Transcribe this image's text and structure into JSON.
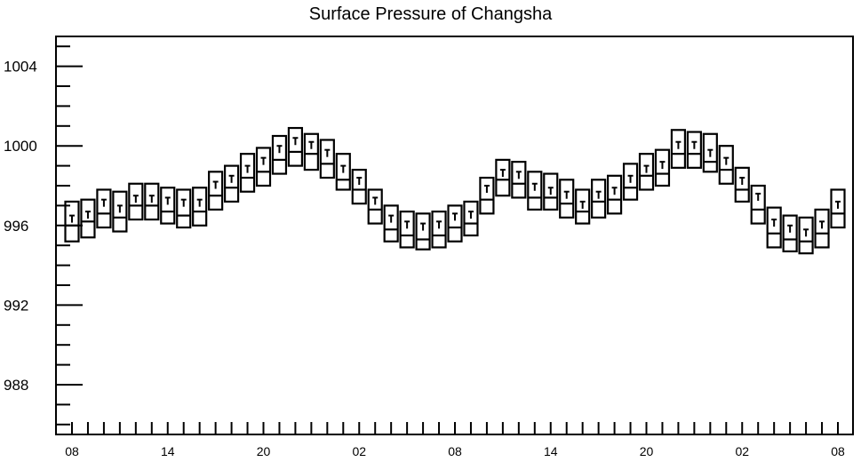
{
  "chart_data": {
    "type": "boxplot",
    "title": "Surface Pressure of Changsha",
    "xlabel": "",
    "ylabel": "",
    "ylim": [
      985.5,
      1005.5
    ],
    "yticks": [
      988,
      992,
      996,
      1000,
      1004
    ],
    "xtick_labels": [
      "08",
      "14",
      "20",
      "02",
      "08",
      "14",
      "20",
      "02",
      "08"
    ],
    "x_step_hours": 3,
    "series": [
      {
        "box": [
          [
            995.2,
            997.2
          ],
          [
            995.4,
            997.3
          ],
          [
            995.9,
            997.8
          ],
          [
            995.7,
            997.7
          ],
          [
            996.3,
            998.1
          ],
          [
            996.3,
            998.1
          ],
          [
            996.1,
            997.9
          ],
          [
            995.9,
            997.8
          ],
          [
            996.0,
            997.9
          ],
          [
            996.8,
            998.7
          ],
          [
            997.2,
            999.0
          ],
          [
            997.7,
            999.6
          ],
          [
            998.0,
            999.9
          ],
          [
            998.6,
            1000.5
          ],
          [
            999.0,
            1000.9
          ],
          [
            998.8,
            1000.6
          ],
          [
            998.4,
            1000.3
          ],
          [
            997.8,
            999.6
          ],
          [
            997.1,
            998.8
          ],
          [
            996.1,
            997.8
          ],
          [
            995.2,
            997.0
          ],
          [
            994.9,
            996.7
          ],
          [
            994.8,
            996.6
          ],
          [
            994.9,
            996.7
          ],
          [
            995.2,
            997.0
          ],
          [
            995.5,
            997.2
          ],
          [
            996.6,
            998.4
          ],
          [
            997.5,
            999.3
          ],
          [
            997.4,
            999.2
          ],
          [
            996.8,
            998.7
          ],
          [
            996.8,
            998.6
          ],
          [
            996.4,
            998.3
          ],
          [
            996.1,
            997.8
          ],
          [
            996.4,
            998.3
          ],
          [
            996.6,
            998.5
          ],
          [
            997.3,
            999.1
          ],
          [
            997.8,
            999.6
          ],
          [
            998.0,
            999.8
          ],
          [
            998.9,
            1000.8
          ],
          [
            998.9,
            1000.7
          ],
          [
            998.7,
            1000.6
          ],
          [
            998.1,
            1000.0
          ],
          [
            997.2,
            998.9
          ],
          [
            996.1,
            998.0
          ],
          [
            994.9,
            996.9
          ],
          [
            994.7,
            996.5
          ],
          [
            994.6,
            996.4
          ],
          [
            994.9,
            996.8
          ],
          [
            995.9,
            997.8
          ]
        ],
        "median": [
          996.0,
          996.2,
          996.6,
          996.4,
          997.0,
          997.0,
          996.7,
          996.5,
          996.7,
          997.5,
          997.9,
          998.4,
          998.7,
          999.3,
          999.7,
          999.6,
          999.1,
          998.3,
          997.8,
          996.8,
          995.8,
          995.5,
          995.3,
          995.5,
          995.9,
          996.1,
          997.3,
          998.3,
          998.1,
          997.4,
          997.4,
          997.1,
          996.7,
          997.2,
          997.3,
          997.9,
          998.5,
          998.6,
          999.6,
          999.6,
          999.2,
          998.8,
          997.8,
          996.8,
          995.6,
          995.3,
          995.2,
          995.6,
          996.6
        ],
        "mean_marker": [
          996.5,
          996.7,
          997.3,
          997.0,
          997.5,
          997.5,
          997.4,
          997.3,
          997.3,
          998.2,
          998.5,
          999.0,
          999.4,
          1000.0,
          1000.4,
          1000.2,
          999.8,
          999.0,
          998.4,
          997.4,
          996.5,
          996.2,
          996.1,
          996.2,
          996.6,
          996.7,
          998.0,
          998.8,
          998.7,
          998.1,
          997.9,
          997.7,
          997.2,
          997.7,
          997.9,
          998.5,
          999.0,
          999.2,
          1000.2,
          1000.2,
          999.8,
          999.4,
          998.4,
          997.6,
          996.3,
          996.0,
          995.8,
          996.2,
          997.2
        ]
      }
    ]
  }
}
